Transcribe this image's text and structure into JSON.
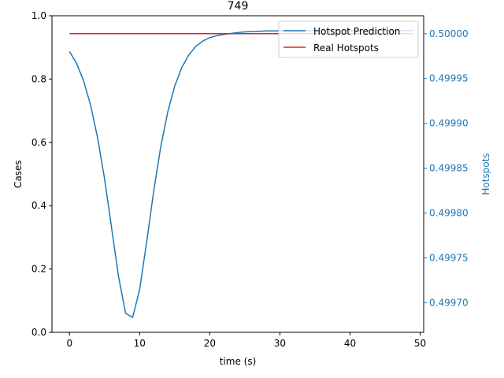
{
  "chart_data": {
    "type": "line",
    "title": "749",
    "xlabel": "time (s)",
    "ylabel": "Cases",
    "y2label": "Hotspots",
    "xlim": [
      -2.5,
      50.5
    ],
    "ylim": [
      0,
      1
    ],
    "y2lim": [
      0.499667,
      0.50002
    ],
    "xticks": [
      "0",
      "10",
      "20",
      "30",
      "40",
      "50"
    ],
    "yticks": [
      "0.0",
      "0.2",
      "0.4",
      "0.6",
      "0.8",
      "1.0"
    ],
    "y2ticks": [
      "0.49970",
      "0.49975",
      "0.49980",
      "0.49985",
      "0.49990",
      "0.49995",
      "0.50000"
    ],
    "legend_position": "top-right",
    "series": [
      {
        "name": "Hotspot Prediction",
        "color": "#1f77b4",
        "axis": "left",
        "x": [
          0,
          1,
          2,
          3,
          4,
          5,
          6,
          7,
          8,
          9,
          10,
          11,
          12,
          13,
          14,
          15,
          16,
          17,
          18,
          19,
          20,
          21,
          22,
          23,
          24,
          25,
          26,
          27,
          28,
          29,
          30,
          31,
          32,
          33,
          34,
          35,
          36,
          37,
          38,
          39,
          40,
          41,
          42,
          43,
          44,
          45,
          46,
          47,
          48,
          49
        ],
        "values": [
          0.887,
          0.85,
          0.795,
          0.718,
          0.615,
          0.485,
          0.33,
          0.175,
          0.06,
          0.047,
          0.135,
          0.285,
          0.445,
          0.585,
          0.695,
          0.778,
          0.836,
          0.876,
          0.903,
          0.92,
          0.931,
          0.937,
          0.941,
          0.944,
          0.947,
          0.949,
          0.95,
          0.951,
          0.952,
          0.952,
          0.952,
          0.953,
          0.953,
          0.953,
          0.953,
          0.953,
          0.953,
          0.953,
          0.953,
          0.953,
          0.953,
          0.953,
          0.953,
          0.953,
          0.953,
          0.953,
          0.953,
          0.953,
          0.953,
          0.953
        ]
      },
      {
        "name": "Real Hotspots",
        "color": "#d62728",
        "axis": "right",
        "x": [
          0,
          1,
          2,
          3,
          4,
          5,
          6,
          7,
          8,
          9,
          10,
          11,
          12,
          13,
          14,
          15,
          16,
          17,
          18,
          19,
          20,
          21,
          22,
          23,
          24,
          25,
          26,
          27,
          28,
          29,
          30,
          31,
          32,
          33,
          34,
          35,
          36,
          37,
          38,
          39,
          40,
          41,
          42,
          43,
          44,
          45,
          46,
          47,
          48,
          49
        ],
        "values": [
          0.5,
          0.5,
          0.5,
          0.5,
          0.5,
          0.5,
          0.5,
          0.5,
          0.5,
          0.5,
          0.5,
          0.5,
          0.5,
          0.5,
          0.5,
          0.5,
          0.5,
          0.5,
          0.5,
          0.5,
          0.5,
          0.5,
          0.5,
          0.5,
          0.5,
          0.5,
          0.5,
          0.5,
          0.5,
          0.5,
          0.5,
          0.5,
          0.5,
          0.5,
          0.5,
          0.5,
          0.5,
          0.5,
          0.5,
          0.5,
          0.5,
          0.5,
          0.5,
          0.5,
          0.5,
          0.5,
          0.5,
          0.5,
          0.5,
          0.5
        ]
      }
    ],
    "colors": {
      "left_axis": "#000000",
      "right_axis": "#1f77b4"
    }
  }
}
